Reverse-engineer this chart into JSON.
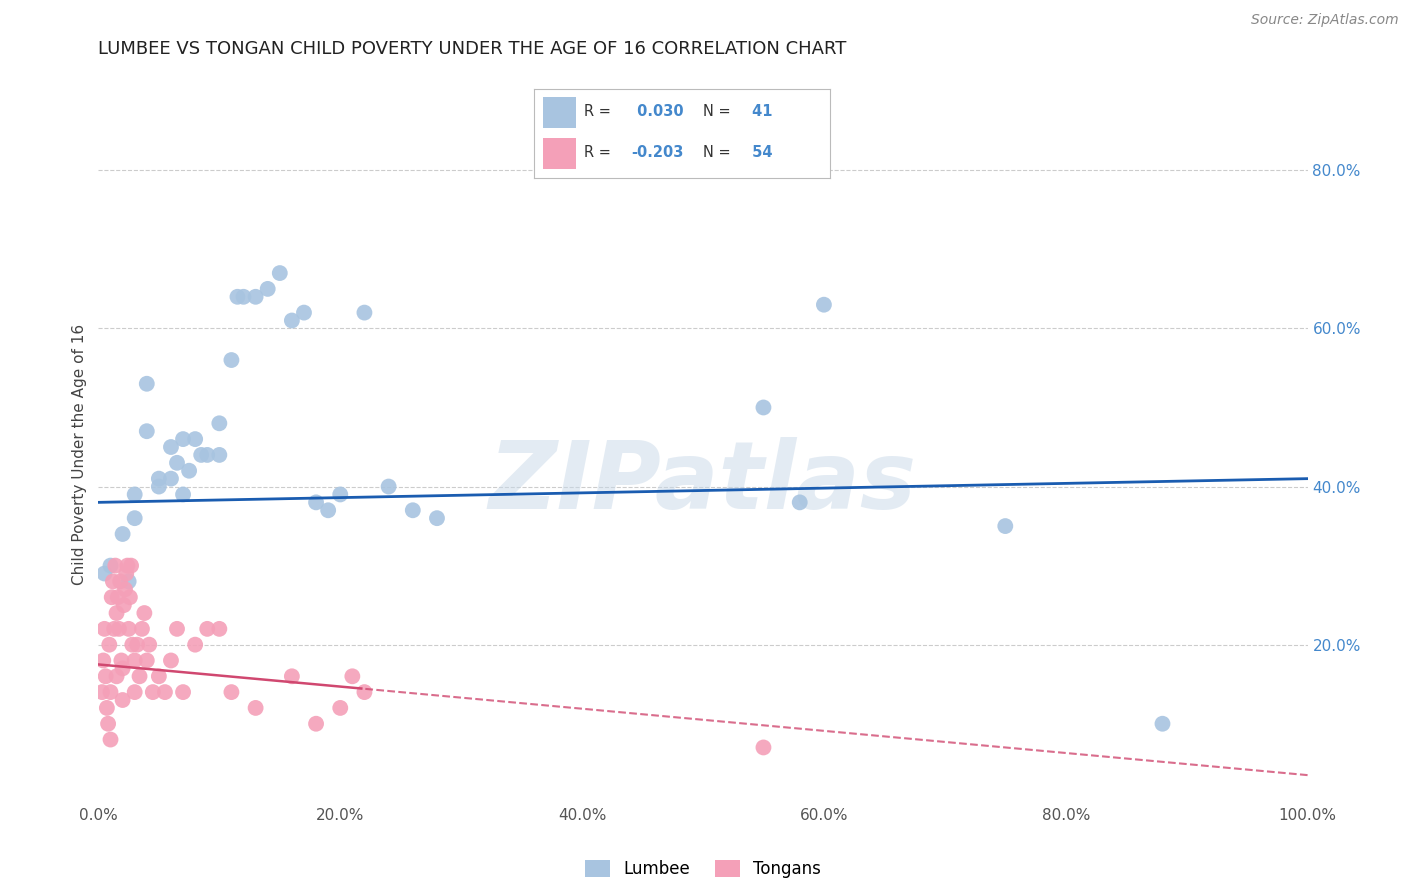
{
  "title": "LUMBEE VS TONGAN CHILD POVERTY UNDER THE AGE OF 16 CORRELATION CHART",
  "source_text": "Source: ZipAtlas.com",
  "ylabel": "Child Poverty Under the Age of 16",
  "watermark": "ZIPatlas",
  "xlim": [
    0.0,
    1.0
  ],
  "ylim": [
    0.0,
    0.88
  ],
  "xticks": [
    0.0,
    0.2,
    0.4,
    0.6,
    0.8,
    1.0
  ],
  "xticklabels": [
    "0.0%",
    "20.0%",
    "40.0%",
    "60.0%",
    "80.0%",
    "100.0%"
  ],
  "yticks_right": [
    0.2,
    0.4,
    0.6,
    0.8
  ],
  "yticklabels_right": [
    "20.0%",
    "40.0%",
    "60.0%",
    "80.0%"
  ],
  "lumbee_R": 0.03,
  "lumbee_N": 41,
  "tongan_R": -0.203,
  "tongan_N": 54,
  "lumbee_color": "#a8c4e0",
  "tongan_color": "#f4a0b8",
  "lumbee_line_color": "#1a5cb0",
  "tongan_line_color": "#d04870",
  "lumbee_x": [
    0.005,
    0.01,
    0.02,
    0.025,
    0.03,
    0.03,
    0.04,
    0.04,
    0.05,
    0.05,
    0.06,
    0.06,
    0.065,
    0.07,
    0.07,
    0.075,
    0.08,
    0.085,
    0.09,
    0.1,
    0.1,
    0.11,
    0.115,
    0.12,
    0.13,
    0.14,
    0.15,
    0.16,
    0.17,
    0.18,
    0.19,
    0.2,
    0.22,
    0.24,
    0.26,
    0.28,
    0.55,
    0.58,
    0.6,
    0.75,
    0.88
  ],
  "lumbee_y": [
    0.29,
    0.3,
    0.34,
    0.28,
    0.36,
    0.39,
    0.47,
    0.53,
    0.41,
    0.4,
    0.41,
    0.45,
    0.43,
    0.39,
    0.46,
    0.42,
    0.46,
    0.44,
    0.44,
    0.44,
    0.48,
    0.56,
    0.64,
    0.64,
    0.64,
    0.65,
    0.67,
    0.61,
    0.62,
    0.38,
    0.37,
    0.39,
    0.62,
    0.4,
    0.37,
    0.36,
    0.5,
    0.38,
    0.63,
    0.35,
    0.1
  ],
  "tongan_x": [
    0.003,
    0.004,
    0.005,
    0.006,
    0.007,
    0.008,
    0.009,
    0.01,
    0.01,
    0.011,
    0.012,
    0.013,
    0.014,
    0.015,
    0.015,
    0.016,
    0.017,
    0.018,
    0.019,
    0.02,
    0.02,
    0.021,
    0.022,
    0.023,
    0.024,
    0.025,
    0.026,
    0.027,
    0.028,
    0.03,
    0.03,
    0.032,
    0.034,
    0.036,
    0.038,
    0.04,
    0.042,
    0.045,
    0.05,
    0.055,
    0.06,
    0.065,
    0.07,
    0.08,
    0.09,
    0.1,
    0.11,
    0.13,
    0.16,
    0.18,
    0.2,
    0.21,
    0.22,
    0.55
  ],
  "tongan_y": [
    0.14,
    0.18,
    0.22,
    0.16,
    0.12,
    0.1,
    0.2,
    0.08,
    0.14,
    0.26,
    0.28,
    0.22,
    0.3,
    0.16,
    0.24,
    0.26,
    0.22,
    0.28,
    0.18,
    0.13,
    0.17,
    0.25,
    0.27,
    0.29,
    0.3,
    0.22,
    0.26,
    0.3,
    0.2,
    0.14,
    0.18,
    0.2,
    0.16,
    0.22,
    0.24,
    0.18,
    0.2,
    0.14,
    0.16,
    0.14,
    0.18,
    0.22,
    0.14,
    0.2,
    0.22,
    0.22,
    0.14,
    0.12,
    0.16,
    0.1,
    0.12,
    0.16,
    0.14,
    0.07
  ],
  "background_color": "#ffffff",
  "grid_color": "#cccccc"
}
